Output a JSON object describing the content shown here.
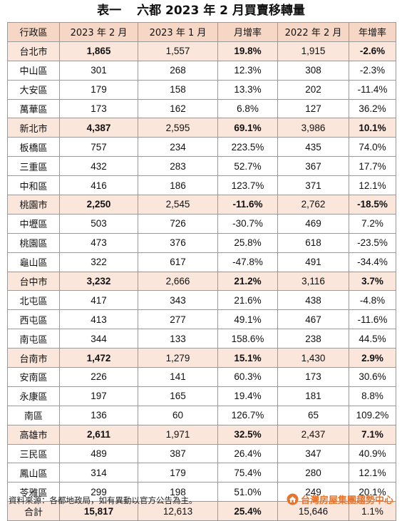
{
  "title": {
    "label": "表一",
    "text": "六都 2023 年 2 月買賣移轉量"
  },
  "headers": [
    "行政區",
    "2023 年 2 月",
    "2023 年 1 月",
    "月增率",
    "2022 年 2 月",
    "年增率"
  ],
  "rows": [
    {
      "type": "city",
      "cells": [
        "台北市",
        "1,865",
        "1,557",
        "19.8%",
        "1,915",
        "-2.6%"
      ]
    },
    {
      "type": "district",
      "cells": [
        "中山區",
        "301",
        "268",
        "12.3%",
        "308",
        "-2.3%"
      ]
    },
    {
      "type": "district",
      "cells": [
        "大安區",
        "179",
        "158",
        "13.3%",
        "202",
        "-11.4%"
      ]
    },
    {
      "type": "district",
      "cells": [
        "萬華區",
        "173",
        "162",
        "6.8%",
        "127",
        "36.2%"
      ]
    },
    {
      "type": "city",
      "cells": [
        "新北市",
        "4,387",
        "2,595",
        "69.1%",
        "3,986",
        "10.1%"
      ]
    },
    {
      "type": "district",
      "cells": [
        "板橋區",
        "757",
        "234",
        "223.5%",
        "435",
        "74.0%"
      ]
    },
    {
      "type": "district",
      "cells": [
        "三重區",
        "432",
        "283",
        "52.7%",
        "367",
        "17.7%"
      ]
    },
    {
      "type": "district",
      "cells": [
        "中和區",
        "416",
        "186",
        "123.7%",
        "371",
        "12.1%"
      ]
    },
    {
      "type": "city",
      "cells": [
        "桃園市",
        "2,250",
        "2,545",
        "-11.6%",
        "2,762",
        "-18.5%"
      ]
    },
    {
      "type": "district",
      "cells": [
        "中壢區",
        "503",
        "726",
        "-30.7%",
        "469",
        "7.2%"
      ]
    },
    {
      "type": "district",
      "cells": [
        "桃園區",
        "473",
        "376",
        "25.8%",
        "618",
        "-23.5%"
      ]
    },
    {
      "type": "district",
      "cells": [
        "龜山區",
        "322",
        "617",
        "-47.8%",
        "491",
        "-34.4%"
      ]
    },
    {
      "type": "city",
      "cells": [
        "台中市",
        "3,232",
        "2,666",
        "21.2%",
        "3,116",
        "3.7%"
      ]
    },
    {
      "type": "district",
      "cells": [
        "北屯區",
        "417",
        "343",
        "21.6%",
        "438",
        "-4.8%"
      ]
    },
    {
      "type": "district",
      "cells": [
        "西屯區",
        "413",
        "277",
        "49.1%",
        "467",
        "-11.6%"
      ]
    },
    {
      "type": "district",
      "cells": [
        "南屯區",
        "344",
        "133",
        "158.6%",
        "238",
        "44.5%"
      ]
    },
    {
      "type": "city",
      "cells": [
        "台南市",
        "1,472",
        "1,279",
        "15.1%",
        "1,430",
        "2.9%"
      ]
    },
    {
      "type": "district",
      "cells": [
        "安南區",
        "226",
        "141",
        "60.3%",
        "173",
        "30.6%"
      ]
    },
    {
      "type": "district",
      "cells": [
        "永康區",
        "197",
        "165",
        "19.4%",
        "181",
        "8.8%"
      ]
    },
    {
      "type": "district",
      "cells": [
        "南區",
        "136",
        "60",
        "126.7%",
        "65",
        "109.2%"
      ]
    },
    {
      "type": "city",
      "cells": [
        "高雄市",
        "2,611",
        "1,971",
        "32.5%",
        "2,437",
        "7.1%"
      ]
    },
    {
      "type": "district",
      "cells": [
        "三民區",
        "489",
        "387",
        "26.4%",
        "347",
        "40.9%"
      ]
    },
    {
      "type": "district",
      "cells": [
        "鳳山區",
        "314",
        "179",
        "75.4%",
        "280",
        "12.1%"
      ]
    },
    {
      "type": "district",
      "cells": [
        "苓雅區",
        "299",
        "198",
        "51.0%",
        "249",
        "20.1%"
      ]
    },
    {
      "type": "total",
      "cells": [
        "合計",
        "15,817",
        "12,613",
        "25.4%",
        "15,646",
        "1.1%"
      ]
    }
  ],
  "footer": {
    "source": "資料來源：各都地政局，如有異動以官方公告為主。",
    "brand": "台灣房屋集團趨勢中心",
    "brand_icon": "house-logo-icon",
    "brand_color": "#e8732a"
  },
  "colors": {
    "header_bg": "#f6d6c4",
    "city_row_bg": "#fbe6dc",
    "border": "#9a9a9a"
  }
}
